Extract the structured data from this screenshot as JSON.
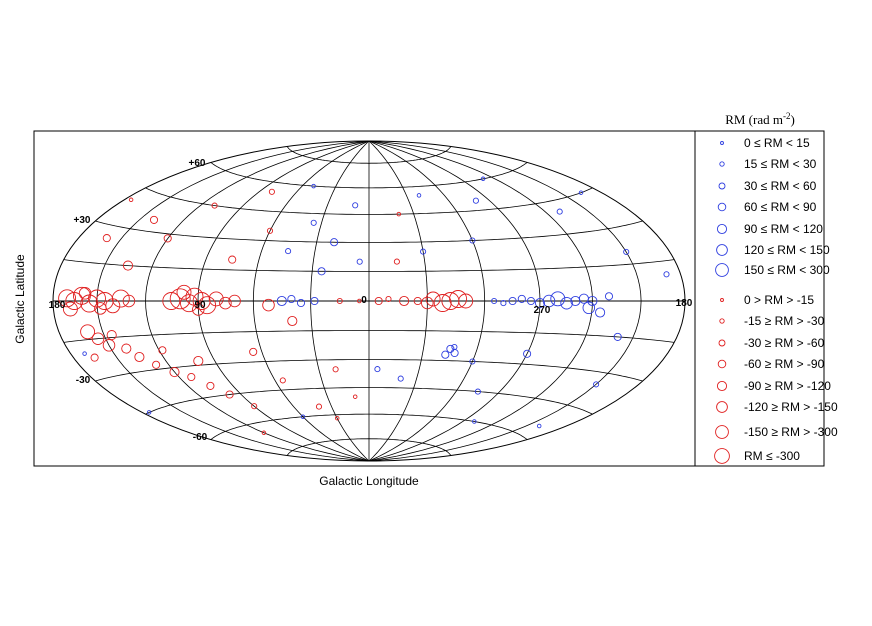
{
  "chart_data": {
    "type": "scatter",
    "projection": "aitoff-hammer (galactic coordinates)",
    "xlabel": "Galactic Longitude",
    "ylabel": "Galactic Latitude",
    "x_tick_labels": [
      "180",
      "90",
      "0",
      "270",
      "180"
    ],
    "y_tick_labels": [
      "+60",
      "+30",
      "-30",
      "-60"
    ],
    "grid": true,
    "legend_title_main": "RM (rad m",
    "legend_title_exp": "-2",
    "legend_title_close": ")",
    "legend_placement": "right",
    "colors": {
      "positive": "#2f3fe0",
      "negative": "#e02020"
    },
    "legend": [
      {
        "label": "0 ≤ RM < 15",
        "sign": "positive",
        "level": 1
      },
      {
        "label": "15 ≤ RM < 30",
        "sign": "positive",
        "level": 2
      },
      {
        "label": "30 ≤ RM < 60",
        "sign": "positive",
        "level": 3
      },
      {
        "label": "60 ≤ RM < 90",
        "sign": "positive",
        "level": 4
      },
      {
        "label": "90 ≤ RM < 120",
        "sign": "positive",
        "level": 5
      },
      {
        "label": "120 ≤ RM < 150",
        "sign": "positive",
        "level": 6
      },
      {
        "label": "150 ≤ RM < 300",
        "sign": "positive",
        "level": 7
      },
      {
        "label": "0 > RM > -15",
        "sign": "negative",
        "level": 1
      },
      {
        "label": "-15 ≥ RM > -30",
        "sign": "negative",
        "level": 2
      },
      {
        "label": "-30 ≥ RM > -60",
        "sign": "negative",
        "level": 3
      },
      {
        "label": "-60 ≥ RM > -90",
        "sign": "negative",
        "level": 4
      },
      {
        "label": "-90 ≥ RM > -120",
        "sign": "negative",
        "level": 5
      },
      {
        "label": "-120 ≥ RM > -150",
        "sign": "negative",
        "level": 6
      },
      {
        "label": "-150 ≥ RM > -300",
        "sign": "negative",
        "level": 7
      },
      {
        "label": "RM ≤ -300",
        "sign": "negative",
        "level": 8
      }
    ],
    "series": [
      {
        "sign": "negative",
        "points": [
          {
            "l": 170,
            "b": 1,
            "rm": -210
          },
          {
            "l": 165,
            "b": 0,
            "rm": -180
          },
          {
            "l": 160,
            "b": 2,
            "rm": -250
          },
          {
            "l": 155,
            "b": -1,
            "rm": -200
          },
          {
            "l": 150,
            "b": 1,
            "rm": -160
          },
          {
            "l": 145,
            "b": 0,
            "rm": -220
          },
          {
            "l": 140,
            "b": -2,
            "rm": -130
          },
          {
            "l": 135,
            "b": 1,
            "rm": -180
          },
          {
            "l": 130,
            "b": 0,
            "rm": -100
          },
          {
            "l": 168,
            "b": -3,
            "rm": -140
          },
          {
            "l": 158,
            "b": 3,
            "rm": -110
          },
          {
            "l": 148,
            "b": -3,
            "rm": -90
          },
          {
            "l": 100,
            "b": 1,
            "rm": -300
          },
          {
            "l": 95,
            "b": -1,
            "rm": -250
          },
          {
            "l": 92,
            "b": 2,
            "rm": -200
          },
          {
            "l": 88,
            "b": 0,
            "rm": -180
          },
          {
            "l": 85,
            "b": -2,
            "rm": -150
          },
          {
            "l": 105,
            "b": 0,
            "rm": -160
          },
          {
            "l": 80,
            "b": 1,
            "rm": -120
          },
          {
            "l": 75,
            "b": -1,
            "rm": -100
          },
          {
            "l": 70,
            "b": 0,
            "rm": -90
          },
          {
            "l": 98,
            "b": 4,
            "rm": -140
          },
          {
            "l": 90,
            "b": -4,
            "rm": -110
          },
          {
            "l": 160,
            "b": -12,
            "rm": -130
          },
          {
            "l": 155,
            "b": -15,
            "rm": -100
          },
          {
            "l": 150,
            "b": -18,
            "rm": -90
          },
          {
            "l": 145,
            "b": -14,
            "rm": -80
          },
          {
            "l": 140,
            "b": -20,
            "rm": -60
          },
          {
            "l": 135,
            "b": -24,
            "rm": -70
          },
          {
            "l": 128,
            "b": -28,
            "rm": -50
          },
          {
            "l": 120,
            "b": -32,
            "rm": -60
          },
          {
            "l": 112,
            "b": -35,
            "rm": -40
          },
          {
            "l": 105,
            "b": -40,
            "rm": -35
          },
          {
            "l": 98,
            "b": -45,
            "rm": -30
          },
          {
            "l": 90,
            "b": -52,
            "rm": -25
          },
          {
            "l": 165,
            "b": -22,
            "rm": -45
          },
          {
            "l": 118,
            "b": -22,
            "rm": -55
          },
          {
            "l": 100,
            "b": -28,
            "rm": -65
          },
          {
            "l": 120,
            "b": 28,
            "rm": -40
          },
          {
            "l": 140,
            "b": 35,
            "rm": -30
          },
          {
            "l": 110,
            "b": 45,
            "rm": -20
          },
          {
            "l": 160,
            "b": 25,
            "rm": -35
          },
          {
            "l": 135,
            "b": 15,
            "rm": -70
          },
          {
            "l": 75,
            "b": 20,
            "rm": -45
          },
          {
            "l": 60,
            "b": 35,
            "rm": -20
          },
          {
            "l": 80,
            "b": 55,
            "rm": -15
          },
          {
            "l": 65,
            "b": -25,
            "rm": -50
          },
          {
            "l": 55,
            "b": -40,
            "rm": -25
          },
          {
            "l": 40,
            "b": -55,
            "rm": -18
          },
          {
            "l": 30,
            "b": -62,
            "rm": -12
          },
          {
            "l": 52,
            "b": -2,
            "rm": -90
          },
          {
            "l": 40,
            "b": -10,
            "rm": -60
          },
          {
            "l": 15,
            "b": 0,
            "rm": -20
          },
          {
            "l": 5,
            "b": 0,
            "rm": -10
          },
          {
            "l": -5,
            "b": 0,
            "rm": -30
          },
          {
            "l": -10,
            "b": 1,
            "rm": -25
          },
          {
            "l": -18,
            "b": 0,
            "rm": -60
          },
          {
            "l": -25,
            "b": 0,
            "rm": -40
          },
          {
            "l": -33,
            "b": 1,
            "rm": -140
          },
          {
            "l": -38,
            "b": -1,
            "rm": -220
          },
          {
            "l": -42,
            "b": 0,
            "rm": -180
          },
          {
            "l": -46,
            "b": 1,
            "rm": -150
          },
          {
            "l": -50,
            "b": 0,
            "rm": -120
          },
          {
            "l": -30,
            "b": -1,
            "rm": -90
          },
          {
            "l": -15,
            "b": 20,
            "rm": -15
          },
          {
            "l": -20,
            "b": 45,
            "rm": -12
          },
          {
            "l": 10,
            "b": -50,
            "rm": -10
          },
          {
            "l": 20,
            "b": -35,
            "rm": -20
          },
          {
            "l": 120,
            "b": -65,
            "rm": -12
          },
          {
            "l": 175,
            "b": 40,
            "rm": -10
          }
        ]
      },
      {
        "sign": "positive",
        "points": [
          {
            "l": -95,
            "b": 0,
            "rm": 100
          },
          {
            "l": -100,
            "b": 1,
            "rm": 140
          },
          {
            "l": -105,
            "b": -1,
            "rm": 90
          },
          {
            "l": -110,
            "b": 0,
            "rm": 80
          },
          {
            "l": -115,
            "b": 1,
            "rm": 70
          },
          {
            "l": -120,
            "b": 0,
            "rm": 60
          },
          {
            "l": -90,
            "b": -1,
            "rm": 75
          },
          {
            "l": -85,
            "b": 0,
            "rm": 55
          },
          {
            "l": -80,
            "b": 1,
            "rm": 45
          },
          {
            "l": -75,
            "b": 0,
            "rm": 35
          },
          {
            "l": -70,
            "b": -1,
            "rm": 28
          },
          {
            "l": -65,
            "b": 0,
            "rm": 22
          },
          {
            "l": -118,
            "b": -3,
            "rm": 110
          },
          {
            "l": -125,
            "b": -5,
            "rm": 60
          },
          {
            "l": -130,
            "b": 2,
            "rm": 40
          },
          {
            "l": -45,
            "b": -24,
            "rm": 55
          },
          {
            "l": -48,
            "b": -26,
            "rm": 40
          },
          {
            "l": -43,
            "b": -27,
            "rm": 30
          },
          {
            "l": -47,
            "b": -23,
            "rm": 25
          },
          {
            "l": 45,
            "b": 0,
            "rm": 70
          },
          {
            "l": 40,
            "b": 1,
            "rm": 55
          },
          {
            "l": 35,
            "b": -1,
            "rm": 40
          },
          {
            "l": 28,
            "b": 0,
            "rm": 30
          },
          {
            "l": 45,
            "b": 25,
            "rm": 25
          },
          {
            "l": 35,
            "b": 40,
            "rm": 20
          },
          {
            "l": 20,
            "b": 30,
            "rm": 40
          },
          {
            "l": 10,
            "b": 50,
            "rm": 15
          },
          {
            "l": 25,
            "b": 15,
            "rm": 35
          },
          {
            "l": 50,
            "b": 60,
            "rm": 12
          },
          {
            "l": 5,
            "b": 20,
            "rm": 18
          },
          {
            "l": -5,
            "b": -35,
            "rm": 22
          },
          {
            "l": -20,
            "b": -40,
            "rm": 18
          },
          {
            "l": -60,
            "b": -30,
            "rm": 25
          },
          {
            "l": -75,
            "b": -45,
            "rm": 15
          },
          {
            "l": -90,
            "b": -25,
            "rm": 30
          },
          {
            "l": -140,
            "b": -15,
            "rm": 35
          },
          {
            "l": -150,
            "b": -35,
            "rm": 20
          },
          {
            "l": -160,
            "b": -55,
            "rm": 12
          },
          {
            "l": -150,
            "b": 20,
            "rm": 25
          },
          {
            "l": -130,
            "b": 40,
            "rm": 18
          },
          {
            "l": -110,
            "b": 60,
            "rm": 12
          },
          {
            "l": -165,
            "b": 45,
            "rm": 14
          },
          {
            "l": -170,
            "b": 10,
            "rm": 20
          },
          {
            "l": -60,
            "b": 30,
            "rm": 20
          },
          {
            "l": -80,
            "b": 50,
            "rm": 15
          },
          {
            "l": -40,
            "b": 55,
            "rm": 12
          },
          {
            "l": -30,
            "b": 25,
            "rm": 22
          },
          {
            "l": 170,
            "b": -20,
            "rm": 14
          },
          {
            "l": 175,
            "b": -45,
            "rm": 12
          },
          {
            "l": 60,
            "b": -60,
            "rm": 10
          },
          {
            "l": -100,
            "b": -60,
            "rm": 12
          }
        ]
      }
    ]
  }
}
